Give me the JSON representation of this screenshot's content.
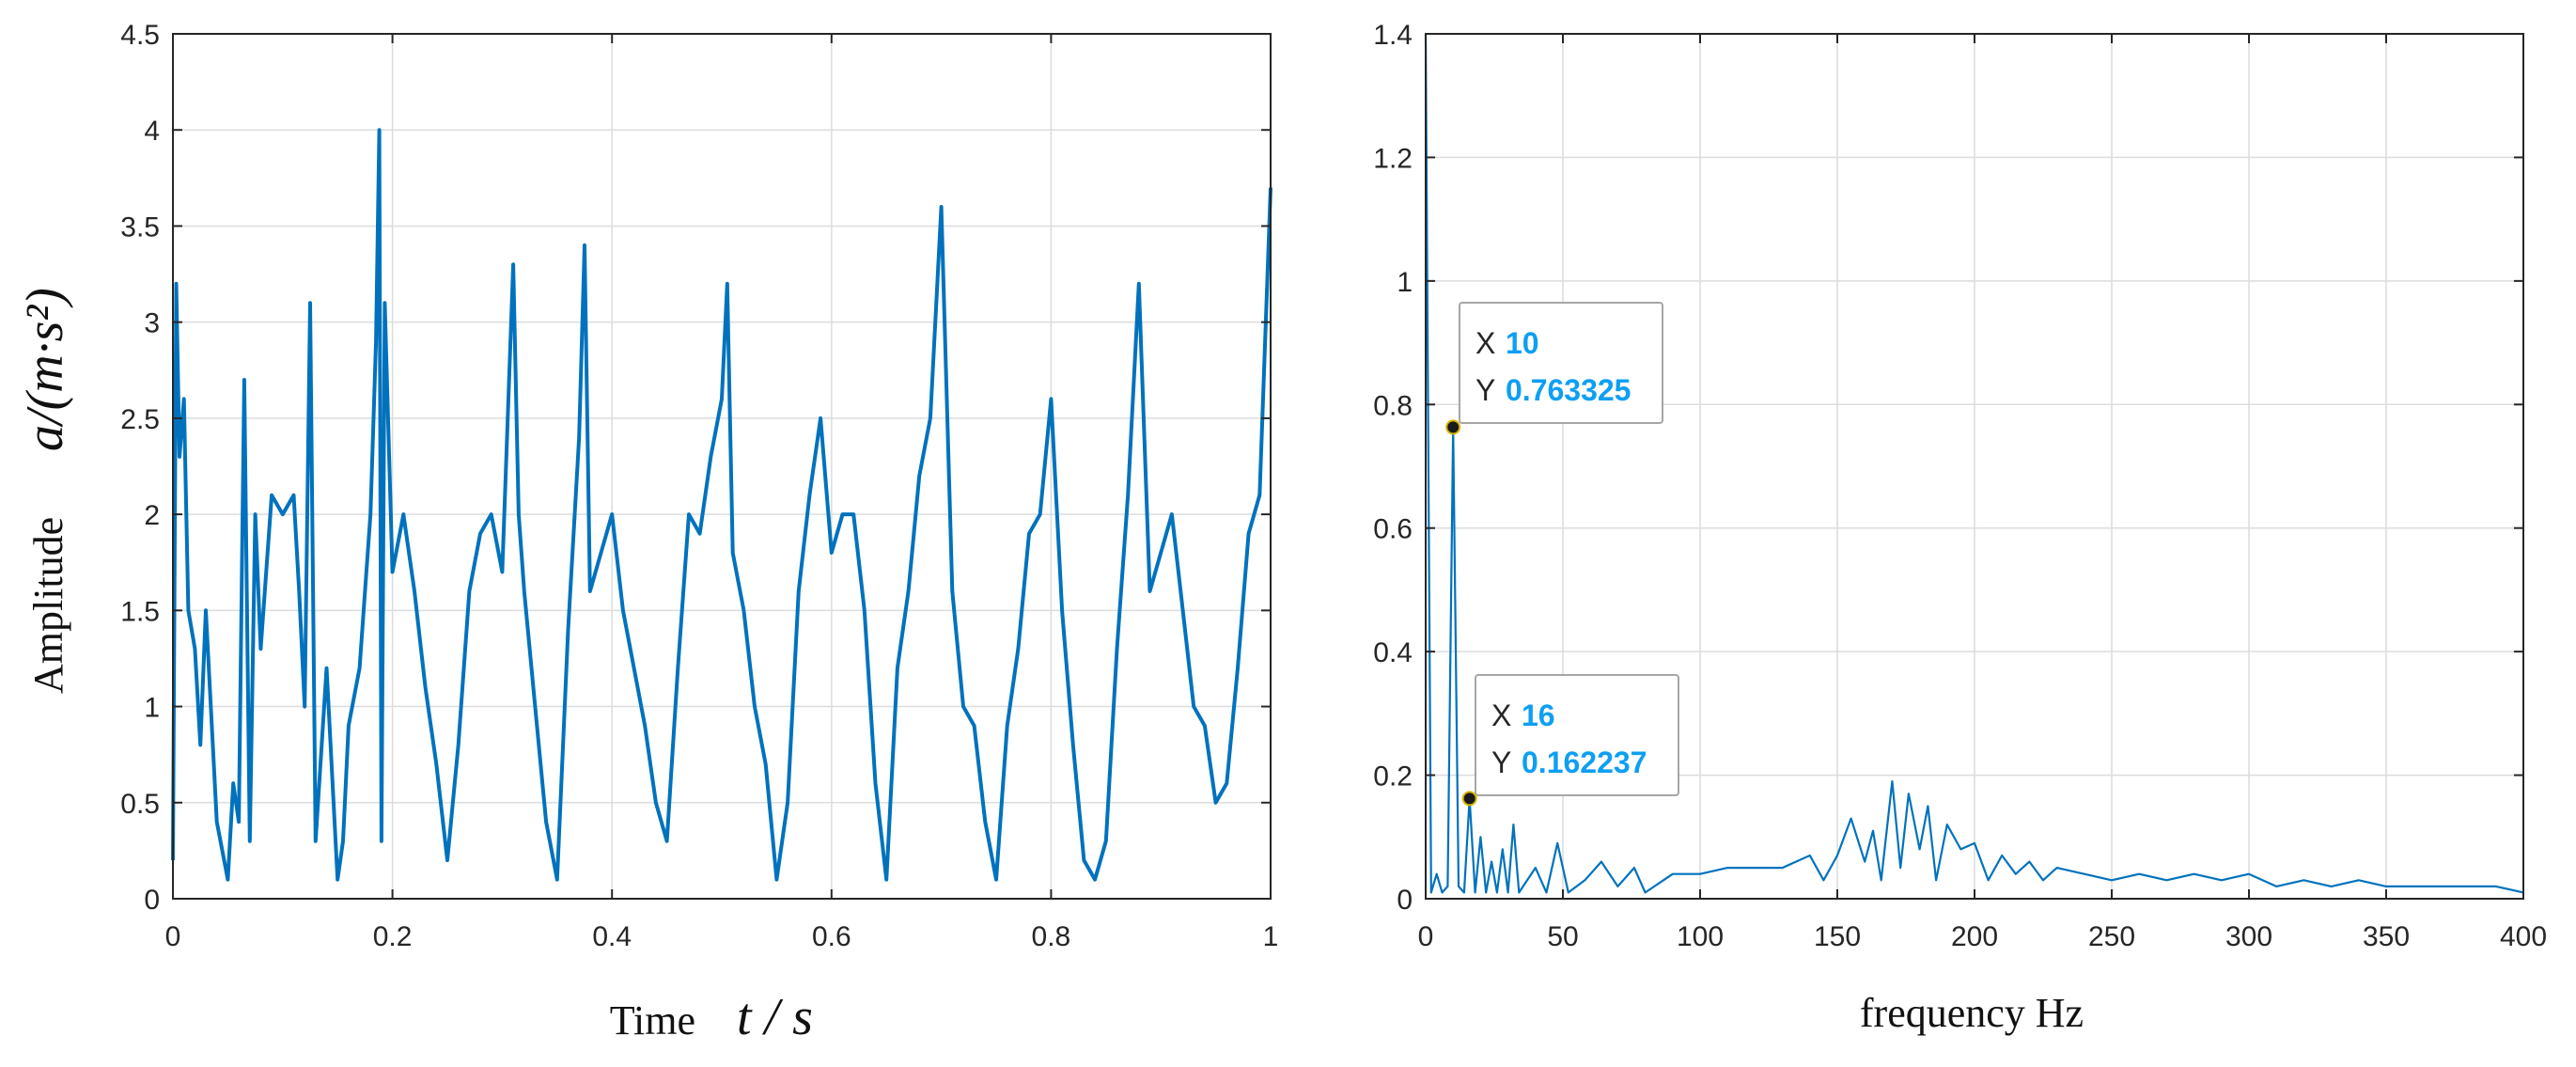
{
  "colors": {
    "series": "#0072bd",
    "grid": "#dcdcdc",
    "axis": "#262626",
    "datatip_value": "#0e9ff2"
  },
  "chart_data": [
    {
      "type": "line",
      "title": "",
      "xlabel": "Time",
      "xlabel_math": "t / s",
      "ylabel": "Amplitude",
      "ylabel_math": "a/(m·s²)",
      "xlim": [
        0,
        1
      ],
      "ylim": [
        0,
        4.5
      ],
      "xticks": [
        0,
        0.2,
        0.4,
        0.6,
        0.8,
        1
      ],
      "xtick_labels": [
        "0",
        "0.2",
        "0.4",
        "0.6",
        "0.8",
        "1"
      ],
      "yticks": [
        0,
        0.5,
        1,
        1.5,
        2,
        2.5,
        3,
        3.5,
        4,
        4.5
      ],
      "ytick_labels": [
        "0",
        "0.5",
        "1",
        "1.5",
        "2",
        "2.5",
        "3",
        "3.5",
        "4",
        "4.5"
      ],
      "grid": true,
      "x": [
        0,
        0.003,
        0.006,
        0.01,
        0.014,
        0.02,
        0.025,
        0.03,
        0.04,
        0.05,
        0.055,
        0.06,
        0.065,
        0.07,
        0.075,
        0.08,
        0.09,
        0.1,
        0.11,
        0.115,
        0.12,
        0.125,
        0.13,
        0.14,
        0.15,
        0.155,
        0.16,
        0.17,
        0.18,
        0.185,
        0.188,
        0.19,
        0.193,
        0.2,
        0.21,
        0.22,
        0.23,
        0.24,
        0.25,
        0.26,
        0.27,
        0.28,
        0.29,
        0.3,
        0.31,
        0.315,
        0.32,
        0.33,
        0.34,
        0.35,
        0.36,
        0.37,
        0.375,
        0.38,
        0.39,
        0.4,
        0.41,
        0.42,
        0.43,
        0.44,
        0.45,
        0.46,
        0.47,
        0.48,
        0.49,
        0.5,
        0.505,
        0.51,
        0.52,
        0.53,
        0.54,
        0.55,
        0.56,
        0.57,
        0.58,
        0.59,
        0.6,
        0.61,
        0.62,
        0.63,
        0.64,
        0.65,
        0.66,
        0.67,
        0.68,
        0.69,
        0.7,
        0.71,
        0.72,
        0.73,
        0.74,
        0.75,
        0.76,
        0.77,
        0.78,
        0.79,
        0.8,
        0.81,
        0.82,
        0.83,
        0.84,
        0.85,
        0.86,
        0.87,
        0.88,
        0.89,
        0.9,
        0.91,
        0.92,
        0.93,
        0.94,
        0.95,
        0.96,
        0.97,
        0.98,
        0.99,
        1
      ],
      "y": [
        0.2,
        3.2,
        2.3,
        2.6,
        1.5,
        1.3,
        0.8,
        1.5,
        0.4,
        0.1,
        0.6,
        0.4,
        2.7,
        0.3,
        2.0,
        1.3,
        2.1,
        2.0,
        2.1,
        1.6,
        1.0,
        3.1,
        0.3,
        1.2,
        0.1,
        0.3,
        0.9,
        1.2,
        2.0,
        2.9,
        4.0,
        0.3,
        3.1,
        1.7,
        2.0,
        1.6,
        1.1,
        0.7,
        0.2,
        0.8,
        1.6,
        1.9,
        2.0,
        1.7,
        3.3,
        2.0,
        1.6,
        1.0,
        0.4,
        0.1,
        1.4,
        2.4,
        3.4,
        1.6,
        1.8,
        2.0,
        1.5,
        1.2,
        0.9,
        0.5,
        0.3,
        1.2,
        2.0,
        1.9,
        2.3,
        2.6,
        3.2,
        1.8,
        1.5,
        1.0,
        0.7,
        0.1,
        0.5,
        1.6,
        2.1,
        2.5,
        1.8,
        2.0,
        2.0,
        1.5,
        0.6,
        0.1,
        1.2,
        1.6,
        2.2,
        2.5,
        3.6,
        1.6,
        1.0,
        0.9,
        0.4,
        0.1,
        0.9,
        1.3,
        1.9,
        2.0,
        2.6,
        1.5,
        0.8,
        0.2,
        0.1,
        0.3,
        1.3,
        2.1,
        3.2,
        1.6,
        1.8,
        2.0,
        1.5,
        1.0,
        0.9,
        0.5,
        0.6,
        1.2,
        1.9,
        2.1,
        3.7
      ]
    },
    {
      "type": "line",
      "title": "",
      "xlabel": "frequency Hz",
      "ylabel": "",
      "xlim": [
        0,
        400
      ],
      "ylim": [
        0,
        1.4
      ],
      "xticks": [
        0,
        50,
        100,
        150,
        200,
        250,
        300,
        350,
        400
      ],
      "xtick_labels": [
        "0",
        "50",
        "100",
        "150",
        "200",
        "250",
        "300",
        "350",
        "400"
      ],
      "yticks": [
        0,
        0.2,
        0.4,
        0.6,
        0.8,
        1,
        1.2,
        1.4
      ],
      "ytick_labels": [
        "0",
        "0.2",
        "0.4",
        "0.6",
        "0.8",
        "1",
        "1.2",
        "1.4"
      ],
      "grid": true,
      "x": [
        0,
        2,
        4,
        6,
        8,
        10,
        12,
        14,
        16,
        18,
        20,
        22,
        24,
        26,
        28,
        30,
        32,
        34,
        40,
        44,
        48,
        52,
        58,
        64,
        70,
        76,
        80,
        90,
        100,
        110,
        120,
        130,
        140,
        145,
        150,
        155,
        160,
        163,
        166,
        170,
        173,
        176,
        180,
        183,
        186,
        190,
        195,
        200,
        205,
        210,
        215,
        220,
        225,
        230,
        240,
        250,
        260,
        270,
        280,
        290,
        300,
        310,
        320,
        330,
        340,
        350,
        360,
        370,
        380,
        390,
        400
      ],
      "y": [
        1.4,
        0.01,
        0.04,
        0.01,
        0.02,
        0.763325,
        0.02,
        0.01,
        0.162237,
        0.01,
        0.1,
        0.01,
        0.06,
        0.01,
        0.08,
        0.01,
        0.12,
        0.01,
        0.05,
        0.01,
        0.09,
        0.01,
        0.03,
        0.06,
        0.02,
        0.05,
        0.01,
        0.04,
        0.04,
        0.05,
        0.05,
        0.05,
        0.07,
        0.03,
        0.07,
        0.13,
        0.06,
        0.11,
        0.03,
        0.19,
        0.05,
        0.17,
        0.08,
        0.15,
        0.03,
        0.12,
        0.08,
        0.09,
        0.03,
        0.07,
        0.04,
        0.06,
        0.03,
        0.05,
        0.04,
        0.03,
        0.04,
        0.03,
        0.04,
        0.03,
        0.04,
        0.02,
        0.03,
        0.02,
        0.03,
        0.02,
        0.02,
        0.02,
        0.02,
        0.02,
        0.01
      ],
      "datatips": [
        {
          "x_label": "X",
          "x_value": "10",
          "y_label": "Y",
          "y_value": "0.763325",
          "x": 10,
          "y": 0.763325
        },
        {
          "x_label": "X",
          "x_value": "16",
          "y_label": "Y",
          "y_value": "0.162237",
          "x": 16,
          "y": 0.162237
        }
      ]
    }
  ]
}
